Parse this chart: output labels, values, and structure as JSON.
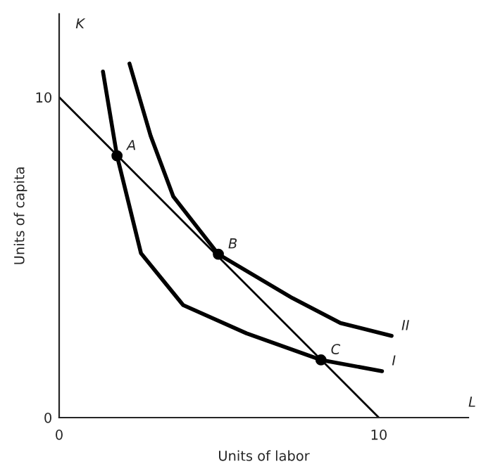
{
  "chart_data": {
    "type": "line",
    "xlabel": "Units of labor",
    "ylabel": "Units of capita",
    "xlim": [
      0,
      12.8
    ],
    "ylim": [
      0,
      12.6
    ],
    "xticks": [
      0,
      10
    ],
    "yticks": [
      0,
      10
    ],
    "grid": false,
    "line_style": "solid",
    "marker": "none",
    "series": [
      {
        "color": "#000000",
        "x": [
          0,
          10
        ],
        "values": [
          10,
          0
        ]
      },
      {
        "color": "#000000",
        "x": [
          1.37,
          1.81,
          2.56,
          3.88,
          5.86,
          8.19,
          10.1
        ],
        "values": [
          10.8,
          8.17,
          5.13,
          3.51,
          2.63,
          1.8,
          1.45
        ]
      },
      {
        "color": "#000000",
        "x": [
          2.2,
          2.86,
          3.57,
          4.98,
          7.3,
          8.8,
          10.4
        ],
        "values": [
          11.05,
          8.8,
          6.9,
          5.1,
          3.73,
          2.95,
          2.55
        ]
      },
      {
        "type": "scatter",
        "marker": "circle",
        "color": "#000000",
        "x": [
          1.81,
          4.98,
          8.19
        ],
        "values": [
          8.17,
          5.1,
          1.8
        ]
      }
    ],
    "annotations": [
      "K",
      "L",
      {
        "text": "A",
        "x": 1.81,
        "y": 8.17
      },
      {
        "text": "B",
        "x": 4.98,
        "y": 5.1
      },
      {
        "text": "C",
        "x": 8.19,
        "y": 1.8
      },
      {
        "text": "I",
        "x": 10.1,
        "y": 1.45
      },
      {
        "text": "II",
        "x": 10.4,
        "y": 2.55
      }
    ]
  }
}
